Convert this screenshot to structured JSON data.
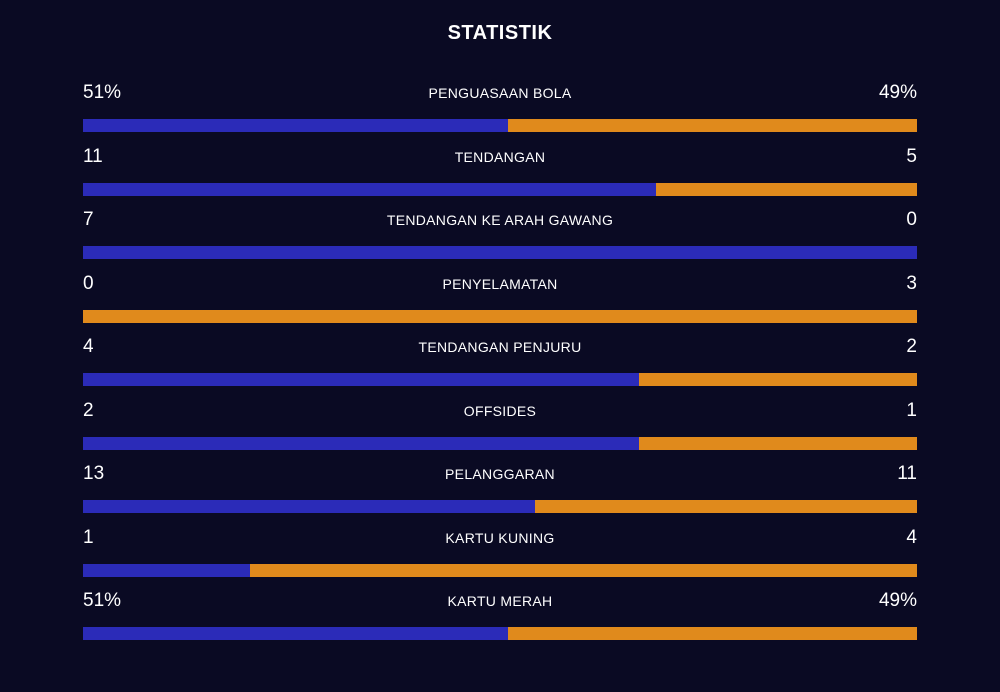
{
  "title": "STATISTIK",
  "colors": {
    "background": "#0a0a23",
    "home": "#2b2bb8",
    "away": "#e08a1c"
  },
  "stats": [
    {
      "label": "PENGUASAAN BOLA",
      "home": "51%",
      "away": "49%",
      "home_share": 0.51
    },
    {
      "label": "TENDANGAN",
      "home": "11",
      "away": "5",
      "home_share": 0.6875
    },
    {
      "label": "TENDANGAN KE ARAH GAWANG",
      "home": "7",
      "away": "0",
      "home_share": 1.0
    },
    {
      "label": "PENYELAMATAN",
      "home": "0",
      "away": "3",
      "home_share": 0.0
    },
    {
      "label": "TENDANGAN PENJURU",
      "home": "4",
      "away": "2",
      "home_share": 0.6667
    },
    {
      "label": "OFFSIDES",
      "home": "2",
      "away": "1",
      "home_share": 0.6667
    },
    {
      "label": "PELANGGARAN",
      "home": "13",
      "away": "11",
      "home_share": 0.5417
    },
    {
      "label": "KARTU KUNING",
      "home": "1",
      "away": "4",
      "home_share": 0.2
    },
    {
      "label": "KARTU MERAH",
      "home": "51%",
      "away": "49%",
      "home_share": 0.51
    }
  ]
}
